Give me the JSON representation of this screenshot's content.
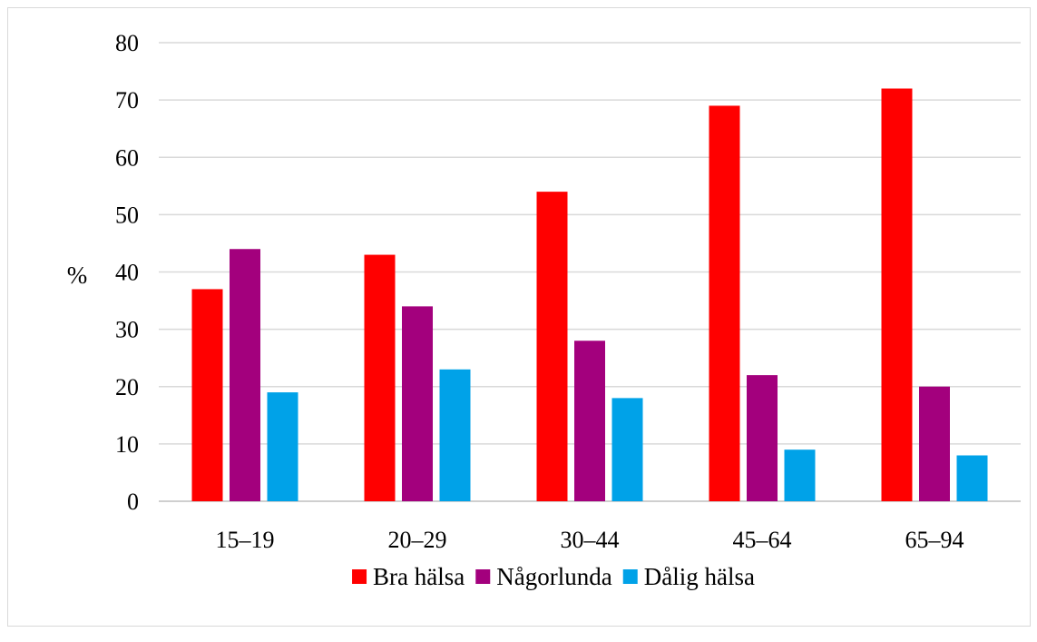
{
  "chart_data": {
    "type": "bar",
    "title": "",
    "xlabel": "",
    "ylabel": "%",
    "ylim": [
      0,
      80
    ],
    "yticks": [
      0,
      10,
      20,
      30,
      40,
      50,
      60,
      70,
      80
    ],
    "categories": [
      "15–19",
      "20–29",
      "30–44",
      "45–64",
      "65–94"
    ],
    "series": [
      {
        "name": "Bra hälsa",
        "color": "#ff0000",
        "values": [
          37,
          43,
          54,
          69,
          72
        ]
      },
      {
        "name": "Någorlunda",
        "color": "#a3007d",
        "values": [
          44,
          34,
          28,
          22,
          20
        ]
      },
      {
        "name": "Dålig hälsa",
        "color": "#00a2e8",
        "values": [
          19,
          23,
          18,
          9,
          8
        ]
      }
    ],
    "grid": true,
    "legend_position": "bottom"
  }
}
